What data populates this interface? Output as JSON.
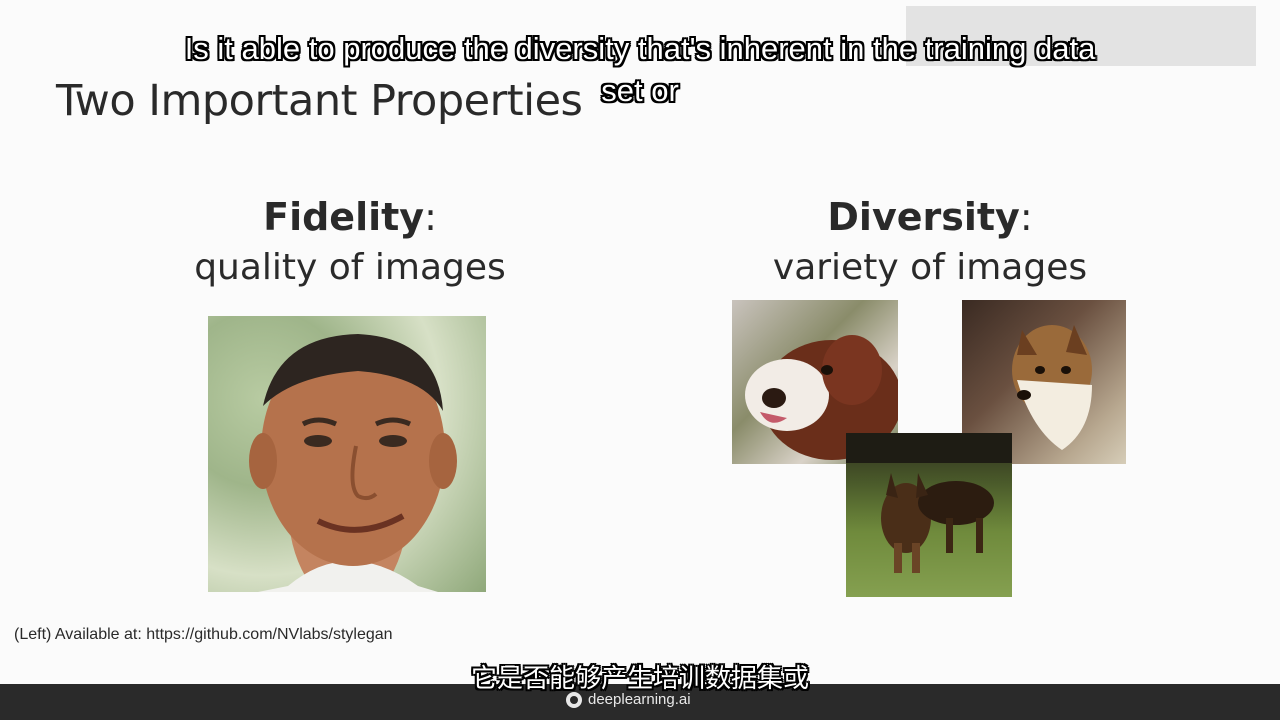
{
  "slide": {
    "title": "Two Important Properties",
    "fidelity": {
      "heading": "Fidelity",
      "colon": ":",
      "subtitle": "quality of images"
    },
    "diversity": {
      "heading": "Diversity",
      "colon": ":",
      "subtitle": "variety of images"
    },
    "credit": "(Left) Available at: https://github.com/NVlabs/stylegan"
  },
  "captions": {
    "english": "Is it able to produce the diversity that's inherent in the training data set or",
    "chinese": "它是否能够产生培训数据集或"
  },
  "footer": {
    "brand": "deeplearning.ai"
  },
  "colors": {
    "text": "#2a2a2a",
    "footer_bg": "#2a2a2a",
    "caption_text": "#ffffff"
  }
}
